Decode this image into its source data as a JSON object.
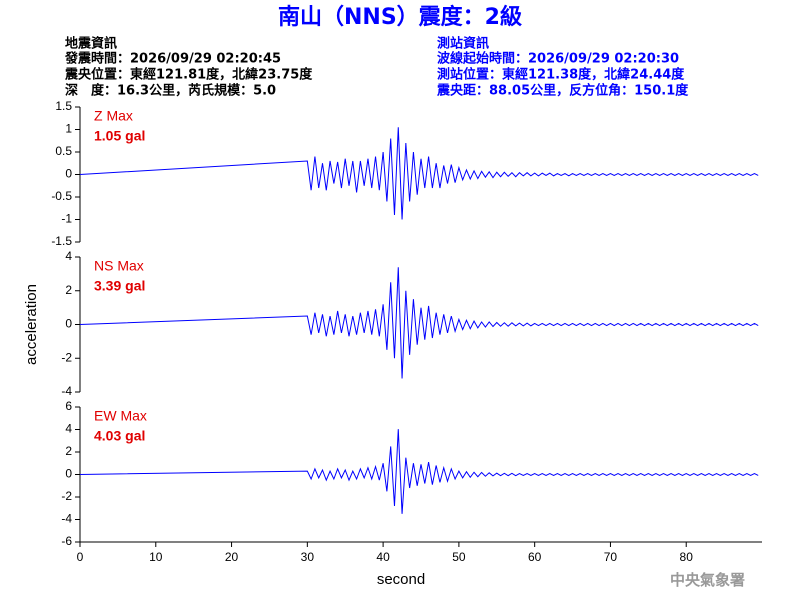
{
  "header": {
    "title": "南山（NNS）震度：2級",
    "left": [
      "地震資訊",
      "發震時間：2026/09/29 02:20:45",
      "震央位置：東經121.81度，北緯23.75度",
      "深　度：16.3公里，芮氏規模：5.0"
    ],
    "right": [
      "測站資訊",
      "波線起始時間：2026/09/29 02:20:30",
      "測站位置：東經121.38度，北緯24.44度",
      "震央距：88.05公里，反方位角：150.1度"
    ]
  },
  "footer": "中央氣象署",
  "chart_data": [
    {
      "type": "line",
      "label": "Z Max",
      "max_label": "1.05 gal",
      "color": "#0000ff",
      "xlim": [
        0,
        90
      ],
      "ylim": [
        -1.5,
        1.5
      ],
      "yticks": [
        -1.5,
        -1,
        -0.5,
        0,
        0.5,
        1,
        1.5
      ],
      "x": [
        0,
        30,
        30.5,
        31,
        31.5,
        32,
        32.5,
        33,
        33.5,
        34,
        34.5,
        35,
        35.5,
        36,
        36.5,
        37,
        37.5,
        38,
        38.5,
        39,
        39.5,
        40,
        40.5,
        41,
        41.5,
        42,
        42.5,
        43,
        43.5,
        44,
        44.5,
        45,
        45.5,
        46,
        46.5,
        47,
        47.5,
        48,
        48.5,
        49,
        49.5,
        50,
        50.5,
        51,
        51.5,
        52,
        52.5,
        53,
        53.5,
        54,
        54.5,
        55,
        55.5,
        56,
        56.5,
        57,
        57.5,
        58,
        58.5,
        59,
        59.5,
        60,
        60.5,
        61,
        61.5,
        62,
        62.5,
        63,
        63.5,
        64,
        64.5,
        65,
        65.5,
        66,
        66.5,
        67,
        67.5,
        68,
        68.5,
        69,
        69.5,
        70,
        70.5,
        71,
        71.5,
        72,
        72.5,
        73,
        73.5,
        74,
        74.5,
        75,
        75.5,
        76,
        76.5,
        77,
        77.5,
        78,
        78.5,
        79,
        79.5,
        80,
        80.5,
        81,
        81.5,
        82,
        82.5,
        83,
        83.5,
        84,
        84.5,
        85,
        85.5,
        86,
        86.5,
        87,
        87.5,
        88,
        88.5,
        89,
        89.5
      ],
      "values": [
        0,
        0.3,
        -0.35,
        0.4,
        -0.3,
        0.25,
        -0.35,
        0.3,
        -0.2,
        0.28,
        -0.3,
        0.35,
        -0.25,
        0.3,
        -0.4,
        0.3,
        -0.25,
        0.35,
        -0.3,
        0.4,
        -0.35,
        0.5,
        -0.6,
        0.8,
        -0.9,
        1.05,
        -1.0,
        0.7,
        -0.6,
        0.5,
        -0.45,
        0.35,
        -0.3,
        0.4,
        -0.3,
        0.25,
        -0.3,
        0.2,
        -0.2,
        0.22,
        -0.18,
        0.15,
        -0.12,
        0.1,
        -0.1,
        0.08,
        -0.09,
        0.07,
        -0.06,
        0.06,
        -0.07,
        0.05,
        -0.05,
        0.05,
        -0.04,
        0.04,
        -0.05,
        0.04,
        -0.03,
        0.04,
        -0.03,
        0.03,
        -0.03,
        0.03,
        -0.02,
        0.03,
        -0.03,
        0.02,
        -0.02,
        0.02,
        -0.03,
        0.02,
        -0.02,
        0.02,
        -0.02,
        0.02,
        -0.02,
        0.02,
        -0.02,
        0.02,
        -0.02,
        0.02,
        -0.02,
        0.02,
        -0.02,
        0.02,
        -0.02,
        0.02,
        -0.02,
        0.02,
        -0.02,
        0.02,
        -0.02,
        0.02,
        -0.02,
        0.02,
        -0.02,
        0.02,
        -0.02,
        0.02,
        -0.02,
        0.02,
        -0.02,
        0.02,
        -0.02,
        0.02,
        -0.02,
        0.02,
        -0.02,
        0.02,
        -0.02,
        0.02,
        -0.02,
        0.02,
        -0.02,
        0.02,
        -0.02,
        0.02,
        -0.02,
        0.02,
        -0.02
      ]
    },
    {
      "type": "line",
      "label": "NS Max",
      "max_label": "3.39 gal",
      "ylabel": "acceleration",
      "color": "#0000ff",
      "xlim": [
        0,
        90
      ],
      "ylim": [
        -4,
        4
      ],
      "yticks": [
        -4,
        -2,
        0,
        2,
        4
      ],
      "x": [
        0,
        30,
        30.5,
        31,
        31.5,
        32,
        32.5,
        33,
        33.5,
        34,
        34.5,
        35,
        35.5,
        36,
        36.5,
        37,
        37.5,
        38,
        38.5,
        39,
        39.5,
        40,
        40.5,
        41,
        41.5,
        42,
        42.5,
        43,
        43.5,
        44,
        44.5,
        45,
        45.5,
        46,
        46.5,
        47,
        47.5,
        48,
        48.5,
        49,
        49.5,
        50,
        50.5,
        51,
        51.5,
        52,
        52.5,
        53,
        53.5,
        54,
        54.5,
        55,
        55.5,
        56,
        56.5,
        57,
        57.5,
        58,
        58.5,
        59,
        59.5,
        60,
        60.5,
        61,
        61.5,
        62,
        62.5,
        63,
        63.5,
        64,
        64.5,
        65,
        65.5,
        66,
        66.5,
        67,
        67.5,
        68,
        68.5,
        69,
        69.5,
        70,
        70.5,
        71,
        71.5,
        72,
        72.5,
        73,
        73.5,
        74,
        74.5,
        75,
        75.5,
        76,
        76.5,
        77,
        77.5,
        78,
        78.5,
        79,
        79.5,
        80,
        80.5,
        81,
        81.5,
        82,
        82.5,
        83,
        83.5,
        84,
        84.5,
        85,
        85.5,
        86,
        86.5,
        87,
        87.5,
        88,
        88.5,
        89,
        89.5
      ],
      "values": [
        0,
        0.5,
        -0.6,
        0.7,
        -0.5,
        0.6,
        -0.7,
        0.5,
        -0.6,
        0.8,
        -0.5,
        0.6,
        -0.7,
        0.5,
        -0.6,
        0.7,
        -0.5,
        0.8,
        -0.6,
        0.9,
        -0.7,
        1.2,
        -1.5,
        2.5,
        -2.0,
        3.39,
        -3.2,
        2.0,
        -1.8,
        1.5,
        -1.2,
        1.0,
        -0.9,
        1.1,
        -0.8,
        0.7,
        -0.6,
        0.6,
        -0.5,
        0.5,
        -0.4,
        0.3,
        -0.3,
        0.25,
        -0.25,
        0.2,
        -0.2,
        0.15,
        -0.15,
        0.15,
        -0.12,
        0.12,
        -0.1,
        0.1,
        -0.1,
        0.1,
        -0.08,
        0.08,
        -0.08,
        0.08,
        -0.08,
        0.06,
        -0.06,
        0.06,
        -0.06,
        0.06,
        -0.06,
        0.06,
        -0.06,
        0.06,
        -0.06,
        0.06,
        -0.06,
        0.06,
        -0.06,
        0.06,
        -0.06,
        0.06,
        -0.06,
        0.06,
        -0.06,
        0.06,
        -0.06,
        0.06,
        -0.06,
        0.06,
        -0.06,
        0.06,
        -0.06,
        0.06,
        -0.06,
        0.06,
        -0.06,
        0.06,
        -0.06,
        0.06,
        -0.06,
        0.06,
        -0.06,
        0.06,
        -0.06,
        0.06,
        -0.06,
        0.06,
        -0.06,
        0.06,
        -0.06,
        0.06,
        -0.06,
        0.06,
        -0.06,
        0.06,
        -0.06,
        0.06,
        -0.06,
        0.06,
        -0.06,
        0.06,
        -0.06,
        0.06,
        -0.06
      ]
    },
    {
      "type": "line",
      "label": "EW Max",
      "max_label": "4.03 gal",
      "xlabel": "second",
      "color": "#0000ff",
      "xlim": [
        0,
        90
      ],
      "ylim": [
        -6,
        6
      ],
      "yticks": [
        -6,
        -4,
        -2,
        0,
        2,
        4,
        6
      ],
      "xticks": [
        0,
        10,
        20,
        30,
        40,
        50,
        60,
        70,
        80
      ],
      "x": [
        0,
        30,
        30.5,
        31,
        31.5,
        32,
        32.5,
        33,
        33.5,
        34,
        34.5,
        35,
        35.5,
        36,
        36.5,
        37,
        37.5,
        38,
        38.5,
        39,
        39.5,
        40,
        40.5,
        41,
        41.5,
        42,
        42.5,
        43,
        43.5,
        44,
        44.5,
        45,
        45.5,
        46,
        46.5,
        47,
        47.5,
        48,
        48.5,
        49,
        49.5,
        50,
        50.5,
        51,
        51.5,
        52,
        52.5,
        53,
        53.5,
        54,
        54.5,
        55,
        55.5,
        56,
        56.5,
        57,
        57.5,
        58,
        58.5,
        59,
        59.5,
        60,
        60.5,
        61,
        61.5,
        62,
        62.5,
        63,
        63.5,
        64,
        64.5,
        65,
        65.5,
        66,
        66.5,
        67,
        67.5,
        68,
        68.5,
        69,
        69.5,
        70,
        70.5,
        71,
        71.5,
        72,
        72.5,
        73,
        73.5,
        74,
        74.5,
        75,
        75.5,
        76,
        76.5,
        77,
        77.5,
        78,
        78.5,
        79,
        79.5,
        80,
        80.5,
        81,
        81.5,
        82,
        82.5,
        83,
        83.5,
        84,
        84.5,
        85,
        85.5,
        86,
        86.5,
        87,
        87.5,
        88,
        88.5,
        89,
        89.5
      ],
      "values": [
        0,
        0.3,
        -0.4,
        0.5,
        -0.3,
        0.4,
        -0.5,
        0.3,
        -0.4,
        0.5,
        -0.3,
        0.4,
        -0.5,
        0.3,
        -0.4,
        0.5,
        -0.3,
        0.6,
        -0.4,
        0.7,
        -0.5,
        1.0,
        -1.5,
        2.5,
        -2.8,
        4.03,
        -3.5,
        1.5,
        -1.2,
        1.0,
        -1.0,
        0.9,
        -0.8,
        1.1,
        -0.9,
        0.8,
        -0.7,
        0.6,
        -0.6,
        0.5,
        -0.4,
        0.3,
        -0.3,
        0.25,
        -0.25,
        0.2,
        -0.2,
        0.18,
        -0.15,
        0.15,
        -0.12,
        0.12,
        -0.1,
        0.1,
        -0.1,
        0.1,
        -0.1,
        0.08,
        -0.08,
        0.08,
        -0.08,
        0.08,
        -0.08,
        0.08,
        -0.08,
        0.08,
        -0.08,
        0.08,
        -0.08,
        0.08,
        -0.08,
        0.08,
        -0.08,
        0.08,
        -0.08,
        0.08,
        -0.08,
        0.08,
        -0.08,
        0.08,
        -0.08,
        0.08,
        -0.08,
        0.08,
        -0.08,
        0.08,
        -0.08,
        0.08,
        -0.08,
        0.08,
        -0.08,
        0.08,
        -0.08,
        0.08,
        -0.08,
        0.08,
        -0.08,
        0.08,
        -0.08,
        0.08,
        -0.08,
        0.08,
        -0.08,
        0.08,
        -0.08,
        0.08,
        -0.08,
        0.08,
        -0.08,
        0.08,
        -0.08,
        0.08,
        -0.08,
        0.08,
        -0.08,
        0.08,
        -0.08,
        0.08,
        -0.08,
        0.08,
        -0.08
      ]
    }
  ]
}
